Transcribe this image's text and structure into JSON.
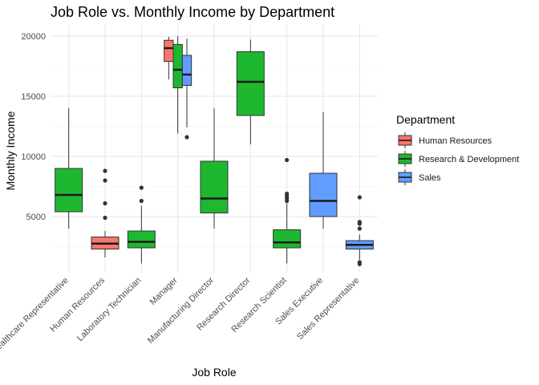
{
  "chart_data": {
    "type": "boxplot",
    "title": "Job Role vs. Monthly Income by Department",
    "xlabel": "Job Role",
    "ylabel": "Monthly Income",
    "ylim": [
      0,
      20800
    ],
    "y_ticks": [
      5000,
      10000,
      15000,
      20000
    ],
    "y_tick_labels": [
      "5000",
      "10000",
      "15000",
      "20000"
    ],
    "grid": true,
    "legend": {
      "title": "Department",
      "position": "right",
      "entries": [
        {
          "name": "Human Resources",
          "color": "#F8766D"
        },
        {
          "name": "Research & Development",
          "color": "#1DB82F"
        },
        {
          "name": "Sales",
          "color": "#619CFF"
        }
      ]
    },
    "categories": [
      "Healthcare Representative",
      "Human Resources",
      "Laboratory Technician",
      "Manager",
      "Manufacturing Director",
      "Research Director",
      "Research Scientist",
      "Sales Executive",
      "Sales Representative"
    ],
    "boxes": [
      {
        "category": "Healthcare Representative",
        "department": "Research & Development",
        "whisker_low": 4000,
        "q1": 5400,
        "median": 6800,
        "q3": 9000,
        "whisker_high": 14000,
        "outliers": []
      },
      {
        "category": "Human Resources",
        "department": "Human Resources",
        "whisker_low": 1600,
        "q1": 2300,
        "median": 2750,
        "q3": 3300,
        "whisker_high": 3800,
        "outliers": [
          4900,
          6100,
          8000,
          8800
        ]
      },
      {
        "category": "Laboratory Technician",
        "department": "Research & Development",
        "whisker_low": 1100,
        "q1": 2400,
        "median": 2900,
        "q3": 3800,
        "whisker_high": 5900,
        "outliers": [
          6300,
          7400
        ]
      },
      {
        "category": "Manager",
        "department": "Human Resources",
        "whisker_low": 16400,
        "q1": 17900,
        "median": 19000,
        "q3": 19650,
        "whisker_high": 19950,
        "outliers": []
      },
      {
        "category": "Manager",
        "department": "Research & Development",
        "whisker_low": 11900,
        "q1": 15700,
        "median": 17200,
        "q3": 19300,
        "whisker_high": 20000,
        "outliers": []
      },
      {
        "category": "Manager",
        "department": "Sales",
        "whisker_low": 12400,
        "q1": 15900,
        "median": 16800,
        "q3": 18400,
        "whisker_high": 19800,
        "outliers": [
          11600
        ]
      },
      {
        "category": "Manufacturing Director",
        "department": "Research & Development",
        "whisker_low": 4000,
        "q1": 5300,
        "median": 6500,
        "q3": 9600,
        "whisker_high": 14000,
        "outliers": []
      },
      {
        "category": "Research Director",
        "department": "Research & Development",
        "whisker_low": 11000,
        "q1": 13400,
        "median": 16200,
        "q3": 18700,
        "whisker_high": 19700,
        "outliers": []
      },
      {
        "category": "Research Scientist",
        "department": "Research & Development",
        "whisker_low": 1100,
        "q1": 2400,
        "median": 2850,
        "q3": 3900,
        "whisker_high": 6100,
        "outliers": [
          6300,
          6500,
          6700,
          6900,
          9700
        ]
      },
      {
        "category": "Sales Executive",
        "department": "Sales",
        "whisker_low": 4000,
        "q1": 5000,
        "median": 6300,
        "q3": 8600,
        "whisker_high": 13700,
        "outliers": []
      },
      {
        "category": "Sales Representative",
        "department": "Sales",
        "whisker_low": 1400,
        "q1": 2300,
        "median": 2650,
        "q3": 3000,
        "whisker_high": 3500,
        "outliers": [
          1050,
          1200,
          4000,
          4400,
          4550,
          6600
        ]
      }
    ]
  }
}
